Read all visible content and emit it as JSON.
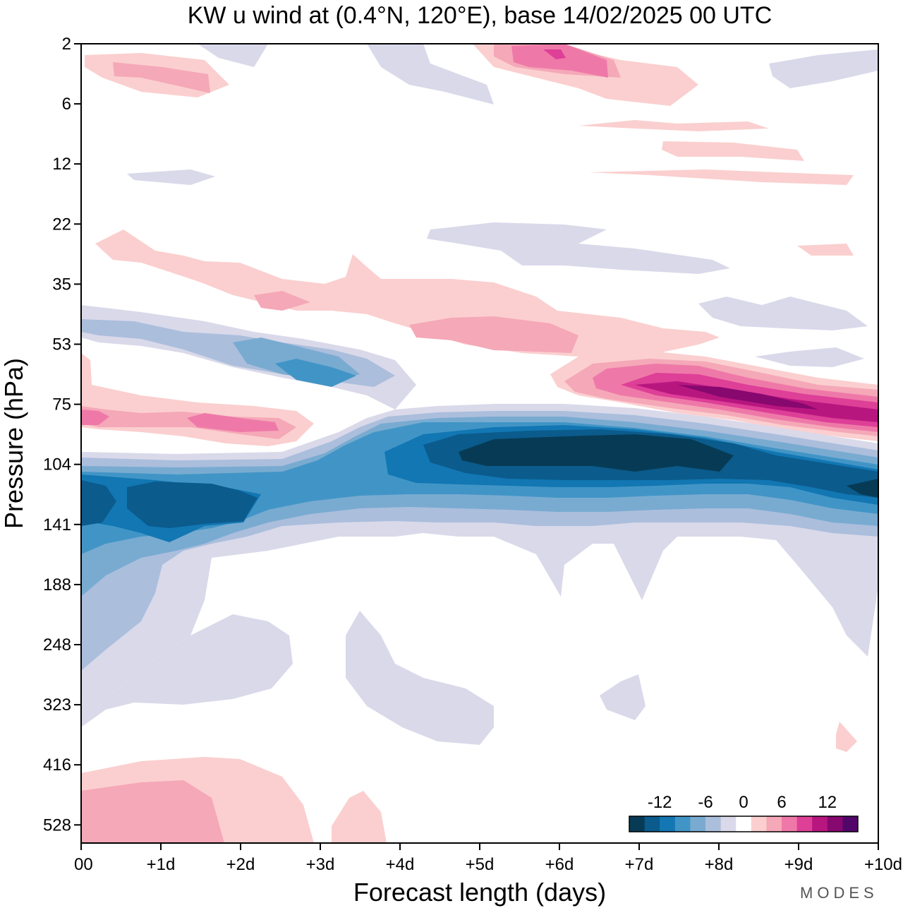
{
  "title": "KW u wind at (0.4°N, 120°E),  base 14/02/2025  00 UTC",
  "brand": "MODES",
  "chart_data": {
    "type": "contour",
    "title": "KW u wind at (0.4°N, 120°E),  base 14/02/2025  00 UTC",
    "xlabel": "Forecast length (days)",
    "ylabel": "Pressure (hPa)",
    "x_ticks": [
      "00",
      "+1d",
      "+2d",
      "+3d",
      "+4d",
      "+5d",
      "+6d",
      "+7d",
      "+8d",
      "+9d",
      "+10d"
    ],
    "y_ticks": [
      "2",
      "6",
      "12",
      "22",
      "35",
      "53",
      "75",
      "104",
      "141",
      "188",
      "248",
      "323",
      "416",
      "528"
    ],
    "xlim": [
      0,
      10
    ],
    "colorbar": {
      "labels": [
        "-12",
        "-6",
        "0",
        "6",
        "12"
      ],
      "bins": [
        -16,
        -14,
        -12,
        -10,
        -8,
        -6,
        -4,
        -2,
        2,
        4,
        6,
        8,
        10,
        12,
        14,
        16
      ],
      "colors": [
        "#073b55",
        "#0b5b8c",
        "#1277b3",
        "#4195c6",
        "#79abd1",
        "#abbedc",
        "#d9d9ea",
        "#ffffff",
        "#fbcfcf",
        "#f5a8b8",
        "#ee79a8",
        "#de3f97",
        "#b8167f",
        "#87086f",
        "#53066a"
      ]
    },
    "features": [
      {
        "name": "strong westward jet core",
        "pressure_hPa": 104,
        "days": [
          4.5,
          8.5
        ],
        "value_ms": -16
      },
      {
        "name": "strong eastward jet core",
        "pressure_hPa": 70,
        "days": [
          7,
          10
        ],
        "value_ms": 15
      },
      {
        "name": "lower westward band",
        "pressure_hPa": 120,
        "days": [
          0,
          4
        ],
        "value_ms": -10
      },
      {
        "name": "upper eastward descending band",
        "pressure_hPa": [
          25,
          53
        ],
        "days": [
          0,
          7
        ],
        "value_ms": 4
      },
      {
        "name": "low-level eastward patch",
        "pressure_hPa": 500,
        "days": [
          0,
          3
        ],
        "value_ms": 5
      }
    ]
  }
}
